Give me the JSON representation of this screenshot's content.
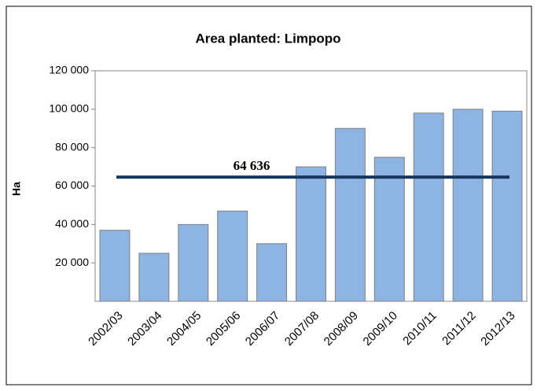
{
  "chart_data": {
    "type": "bar",
    "title": "Area planted: Limpopo",
    "y_label": "Ha",
    "categories": [
      "2002/03",
      "2003/04",
      "2004/05",
      "2005/06",
      "2006/07",
      "2007/08",
      "2008/09",
      "2009/10",
      "2010/11",
      "2011/12",
      "2012/13"
    ],
    "values": [
      37000,
      25000,
      40000,
      47000,
      30000,
      70000,
      90000,
      75000,
      98000,
      100000,
      99000
    ],
    "color": "#8eb4e3",
    "ylim": [
      0,
      120000
    ],
    "yticks": [
      {
        "value": 20000,
        "label": "20 000"
      },
      {
        "value": 40000,
        "label": "40 000"
      },
      {
        "value": 60000,
        "label": "60 000"
      },
      {
        "value": 80000,
        "label": "80 000"
      },
      {
        "value": 100000,
        "label": "100 000"
      },
      {
        "value": 120000,
        "label": "120 000"
      }
    ],
    "average": {
      "value": 64636,
      "label": "64 636",
      "color": "#17375e"
    },
    "grid": false
  }
}
